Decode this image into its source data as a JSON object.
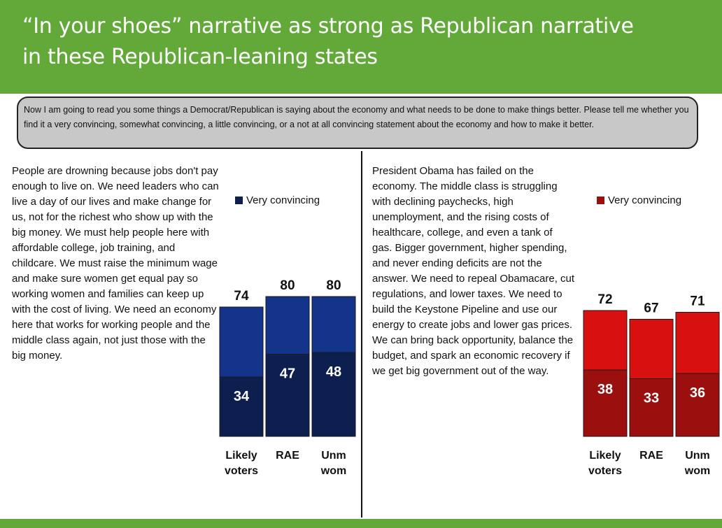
{
  "header": {
    "title_line1": "“In your shoes” narrative as strong as Republican narrative",
    "title_line2": "in these Republican-leaning states"
  },
  "question": "Now I am going to read you some things a Democrat/Republican is saying about the economy and what needs to be done to make things better. Please tell me whether you find it a very convincing, somewhat convincing, a little convincing, or a not at all convincing statement about the economy and how to make it better.",
  "left": {
    "message": "People are drowning because jobs don't pay enough to live on. We need leaders who can live a day of our lives and make change for us, not for the richest who show up with the big money. We must help people here with affordable college, job training, and childcare. We must raise the minimum wage and make sure women get equal pay so working women and families can keep up with the cost of living. We need an economy here that works for working people and the middle class again, not just those with the big money."
  },
  "right": {
    "message": "President Obama has failed on the economy. The middle class is struggling with declining paychecks, high unemployment, and the rising costs of healthcare, college, and even a tank of gas. Bigger government, higher spending, and never ending deficits are not the answer. We need to repeal Obamacare, cut regulations, and lower taxes. We need to build the Keystone Pipeline and use our energy to create jobs and lower gas prices. We can bring back opportunity, balance the budget, and spark an economic recovery if we get big government out of the way."
  },
  "chart_data": [
    {
      "type": "bar",
      "stacked": true,
      "categories": [
        [
          "Likely",
          "voters"
        ],
        [
          "RAE"
        ],
        [
          "Unm",
          "wom"
        ]
      ],
      "totals": [
        74,
        80,
        80
      ],
      "series": [
        {
          "name": "Very convincing",
          "values": [
            34,
            47,
            48
          ],
          "color": "#0d1f4f"
        },
        {
          "name": "",
          "values": [
            40,
            33,
            32
          ],
          "color": "#13348a"
        }
      ],
      "legend": "top-right",
      "legend_label": "Very convincing",
      "legend_color": "#0d1f4f",
      "ylim": [
        0,
        100
      ]
    },
    {
      "type": "bar",
      "stacked": true,
      "categories": [
        [
          "Likely",
          "voters"
        ],
        [
          "RAE"
        ],
        [
          "Unm",
          "wom"
        ]
      ],
      "totals": [
        72,
        67,
        71
      ],
      "series": [
        {
          "name": "Very convincing",
          "values": [
            38,
            33,
            36
          ],
          "color": "#9b0f0f"
        },
        {
          "name": "",
          "values": [
            34,
            34,
            35
          ],
          "color": "#d91010"
        }
      ],
      "legend": "top-right",
      "legend_label": "Very convincing",
      "legend_color": "#9b0f0f",
      "ylim": [
        0,
        100
      ]
    }
  ]
}
